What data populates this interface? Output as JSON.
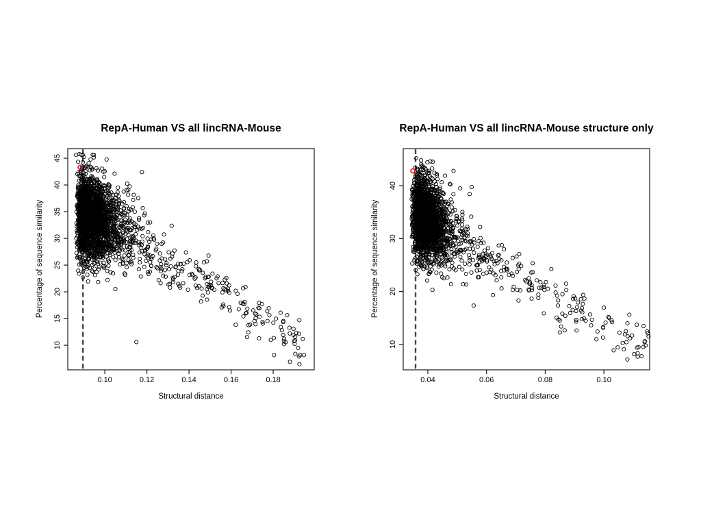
{
  "page": {
    "background": "#ffffff"
  },
  "chart_data": [
    {
      "type": "scatter",
      "title": "RepA-Human VS all lincRNA-Mouse",
      "xlabel": "Structural distance",
      "ylabel": "Percentage of sequence similarity",
      "xlim": [
        0.0824,
        0.1995
      ],
      "ylim": [
        5.4,
        46.8
      ],
      "x_tick_values": [
        0.1,
        0.12,
        0.14,
        0.16,
        0.18
      ],
      "x_tick_labels": [
        "0.10",
        "0.12",
        "0.14",
        "0.16",
        "0.18"
      ],
      "y_tick_values": [
        10,
        15,
        20,
        25,
        30,
        35,
        40,
        45
      ],
      "y_tick_labels": [
        "10",
        "15",
        "20",
        "25",
        "30",
        "35",
        "40",
        "45"
      ],
      "grid": false,
      "legend": "none",
      "marker": "open-circle",
      "point_color": "#000000",
      "n_points_approx": 2400,
      "threshold_line": {
        "x": 0.0896,
        "style": "dashed",
        "color": "#454545"
      },
      "highlight_point": {
        "x": 0.0883,
        "y": 43.3,
        "color": "#e8112a"
      },
      "distribution": {
        "seed": 1337,
        "cluster": {
          "n": 2100,
          "x_origin": 0.089,
          "x_spread_main": 0.008,
          "x_spread_wide": 0.015,
          "wide_fraction": 0.25,
          "x_left_jitter": 0.0028,
          "y_mean": 34.2,
          "y_sd": 4.0,
          "y_slope_vs_x": -120,
          "y_max": 45.8,
          "y_min": 12
        },
        "tail": {
          "n": 300,
          "x_start": 0.095,
          "x_range": 0.1,
          "x_power": 1.6,
          "y_start": 33.5,
          "slope": -235,
          "noise_sd": 2.4,
          "y_min": 6.2
        },
        "extra_points": [
          [
            0.146,
            20.6
          ],
          [
            0.1485,
            20.5
          ],
          [
            0.152,
            20.4
          ],
          [
            0.157,
            20.5
          ],
          [
            0.1585,
            20.6
          ],
          [
            0.131,
            20.8
          ],
          [
            0.115,
            10.6
          ],
          [
            0.188,
            6.9
          ],
          [
            0.1946,
            8.2
          ]
        ]
      }
    },
    {
      "type": "scatter",
      "title": "RepA-Human VS all lincRNA-Mouse structure only",
      "xlabel": "Structural distance",
      "ylabel": "Percentage of sequence similarity",
      "xlim": [
        0.0316,
        0.1156
      ],
      "ylim": [
        5.2,
        47.0
      ],
      "x_tick_values": [
        0.04,
        0.06,
        0.08,
        0.1
      ],
      "x_tick_labels": [
        "0.04",
        "0.06",
        "0.08",
        "0.10"
      ],
      "y_tick_values": [
        10,
        20,
        30,
        40
      ],
      "y_tick_labels": [
        "10",
        "20",
        "30",
        "40"
      ],
      "grid": false,
      "legend": "none",
      "marker": "open-circle",
      "point_color": "#000000",
      "n_points_approx": 2280,
      "threshold_line": {
        "x": 0.0358,
        "style": "dashed",
        "color": "#454545"
      },
      "highlight_point": {
        "x": 0.0349,
        "y": 42.8,
        "color": "#e8112a"
      },
      "distribution": {
        "seed": 7331,
        "cluster": {
          "n": 2000,
          "x_origin": 0.0378,
          "x_spread_main": 0.0042,
          "x_spread_wide": 0.009,
          "wide_fraction": 0.25,
          "x_left_jitter": 0.0035,
          "y_mean": 34.0,
          "y_sd": 3.9,
          "y_slope_vs_x": -280,
          "y_max": 45.4,
          "y_min": 12
        },
        "tail": {
          "n": 270,
          "x_start": 0.042,
          "x_range": 0.074,
          "x_power": 1.6,
          "y_start": 32.5,
          "slope": -330,
          "noise_sd": 2.4,
          "y_min": 6.5
        },
        "extra_points": [
          [
            0.0705,
            20.3
          ],
          [
            0.0715,
            20.2
          ],
          [
            0.0745,
            20.2
          ],
          [
            0.0755,
            20.3
          ],
          [
            0.1075,
            12.5
          ],
          [
            0.1118,
            9.5
          ]
        ]
      }
    }
  ]
}
